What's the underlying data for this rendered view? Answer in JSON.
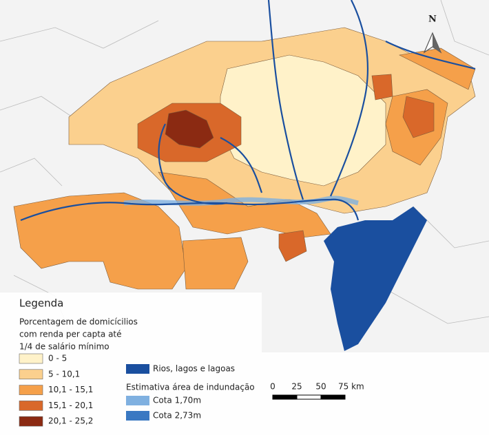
{
  "north": "N",
  "legend": {
    "title": "Legenda",
    "subtitle": [
      "Porcentagem de domicícilios",
      "com renda per capta até",
      "1/4 de salário mínimo"
    ],
    "classes": [
      {
        "label": "0 - 5",
        "color": "#fff2c9"
      },
      {
        "label": "5 - 10,1",
        "color": "#fbd08e"
      },
      {
        "label": "10,1 - 15,1",
        "color": "#f5a04a"
      },
      {
        "label": "15,1 - 20,1",
        "color": "#d9682a"
      },
      {
        "label": "20,1 - 25,2",
        "color": "#8b2a12"
      }
    ],
    "water": {
      "label": "Rios, lagos e lagoas",
      "color": "#1a4f9f"
    },
    "flood_title": "Estimativa área de indundação",
    "flood": [
      {
        "label": "Cota 1,70m",
        "color": "#7fb0e0"
      },
      {
        "label": "Cota 2,73m",
        "color": "#3a78c2"
      }
    ]
  },
  "scale": {
    "ticks": [
      "0",
      "25",
      "50",
      "75 km"
    ]
  }
}
